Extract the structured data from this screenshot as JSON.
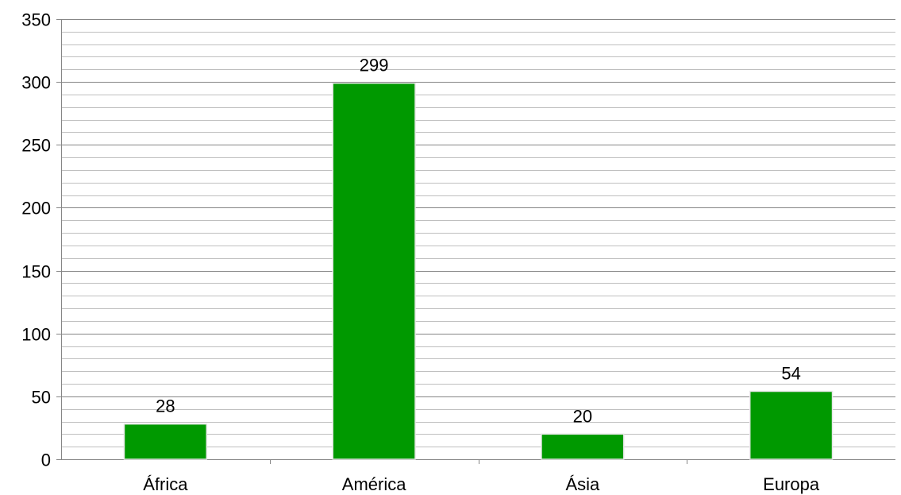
{
  "chart_data": {
    "type": "bar",
    "title": "",
    "xlabel": "",
    "ylabel": "",
    "categories": [
      "África",
      "América",
      "Ásia",
      "Europa"
    ],
    "values": [
      28,
      299,
      20,
      54
    ],
    "ylim": [
      0,
      350
    ],
    "major_ticks": [
      0,
      50,
      100,
      150,
      200,
      250,
      300,
      350
    ],
    "minor_step": 10,
    "grid": true,
    "legend": "none",
    "bar_color": "#009900",
    "bar_edge_color": "#e6e6e6",
    "major_grid_color": "#868686",
    "minor_grid_color": "#bfbfbf"
  }
}
